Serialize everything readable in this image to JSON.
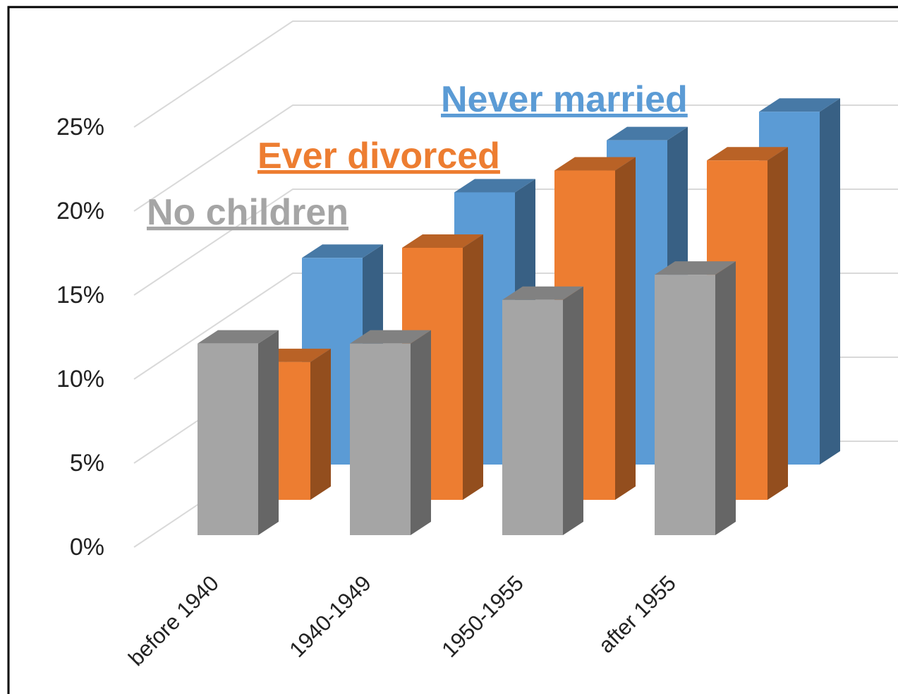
{
  "chart_data": {
    "type": "bar3d",
    "categories": [
      "before 1940",
      "1940-1949",
      "1950-1955",
      "after 1955"
    ],
    "series": [
      {
        "name": "No children",
        "color": "#a5a5a5",
        "values": [
          11.4,
          11.4,
          14.0,
          15.5
        ]
      },
      {
        "name": "Ever divorced",
        "color": "#ed7d31",
        "values": [
          8.2,
          15.0,
          19.6,
          20.2
        ]
      },
      {
        "name": "Never married",
        "color": "#5b9bd5",
        "values": [
          12.3,
          16.2,
          19.3,
          21.0
        ]
      }
    ],
    "ylim": [
      0,
      25
    ],
    "yticks": [
      {
        "value": 0,
        "label": "0%"
      },
      {
        "value": 5,
        "label": "5%"
      },
      {
        "value": 10,
        "label": "10%"
      },
      {
        "value": 15,
        "label": "15%"
      },
      {
        "value": 20,
        "label": "20%"
      },
      {
        "value": 25,
        "label": "25%"
      }
    ],
    "grid": true
  }
}
